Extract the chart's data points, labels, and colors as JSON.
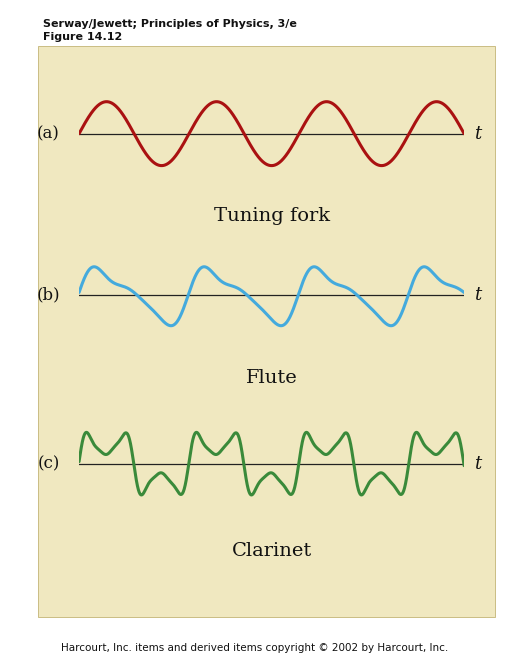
{
  "bg_color": "#ffffff",
  "panel_bg": "#f0e8c0",
  "header_line1": "Serway/Jewett; Principles of Physics, 3/e",
  "header_line2": "Figure 14.12",
  "footer": "Harcourt, Inc. items and derived items copyright © 2002 by Harcourt, Inc.",
  "labels": [
    "(a)",
    "(b)",
    "(c)"
  ],
  "instrument_labels": [
    "Tuning fork",
    "Flute",
    "Clarinet"
  ],
  "colors": [
    "#aa1111",
    "#44aadd",
    "#3a8a3a"
  ],
  "t_label": "t",
  "line_color": "#222222",
  "text_color": "#111111",
  "header_fontsize": 8.0,
  "label_fontsize": 12,
  "instrument_fontsize": 14,
  "t_fontsize": 13,
  "footer_fontsize": 7.5,
  "num_cycles": 3.5,
  "ylim": 1.6
}
